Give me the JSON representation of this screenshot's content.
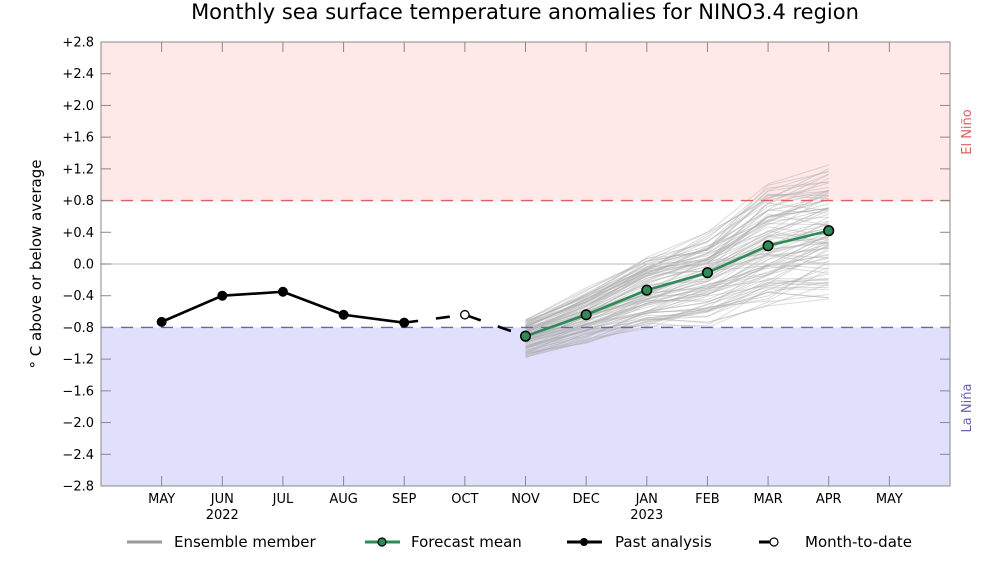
{
  "chart_data": {
    "type": "line",
    "title": "Monthly sea surface temperature anomalies for NINO3.4 region",
    "xlabel": "",
    "ylabel": "° C above or below average",
    "ylim": [
      -2.8,
      2.8
    ],
    "yticks": [
      2.8,
      2.4,
      2.0,
      1.6,
      1.2,
      0.8,
      0.4,
      0.0,
      -0.4,
      -0.8,
      -1.2,
      -1.6,
      -2.0,
      -2.4,
      -2.8
    ],
    "ytick_labels": [
      "+2.8",
      "+2.4",
      "+2.0",
      "+1.6",
      "+1.2",
      "+0.8",
      "+0.4",
      "0.0",
      "−0.4",
      "−0.8",
      "−1.2",
      "−1.6",
      "−2.0",
      "−2.4",
      "−2.8"
    ],
    "categories": [
      "MAY",
      "JUN",
      "JUL",
      "AUG",
      "SEP",
      "OCT",
      "NOV",
      "DEC",
      "JAN",
      "FEB",
      "MAR",
      "APR",
      "MAY"
    ],
    "year_labels": [
      {
        "index": 1,
        "label": "2022"
      },
      {
        "index": 8,
        "label": "2023"
      }
    ],
    "xlim": [
      -1,
      13
    ],
    "grid": false,
    "thresholds": [
      {
        "name": "El Niño",
        "value": 0.8,
        "color": "#e06060",
        "fill": "#ffe8e8",
        "range": [
          0.8,
          2.8
        ]
      },
      {
        "name": "La Niña",
        "value": -0.8,
        "color": "#6a64b0",
        "fill": "#e0e0fc",
        "range": [
          -2.8,
          -0.8
        ]
      }
    ],
    "zero_line": true,
    "series": [
      {
        "name": "Past analysis",
        "style": "solid",
        "color": "#000000",
        "marker": "filled",
        "x": [
          0,
          1,
          2,
          3,
          4
        ],
        "values": [
          -0.73,
          -0.4,
          -0.35,
          -0.64,
          -0.74
        ]
      },
      {
        "name": "Month-to-date",
        "style": "dashed",
        "color": "#000000",
        "marker": "open",
        "x": [
          4,
          5,
          6
        ],
        "values": [
          -0.74,
          -0.64,
          -0.91
        ],
        "marker_indices": [
          1
        ]
      },
      {
        "name": "Forecast mean",
        "style": "solid",
        "color": "#2e8b57",
        "marker": "filled-green",
        "x": [
          6,
          7,
          8,
          9,
          10,
          11
        ],
        "values": [
          -0.91,
          -0.64,
          -0.33,
          -0.11,
          0.23,
          0.42
        ]
      }
    ],
    "ensemble": {
      "name": "Ensemble member",
      "color": "#b0b0b0",
      "count": 99,
      "x": [
        6,
        7,
        8,
        9,
        10,
        11
      ],
      "approx_spread": {
        "min": [
          -1.2,
          -1.0,
          -0.85,
          -0.8,
          -0.55,
          -0.45
        ],
        "max": [
          -0.68,
          -0.3,
          0.15,
          0.4,
          1.05,
          1.25
        ]
      }
    },
    "legend": {
      "placement": "bottom",
      "entries": [
        {
          "label": "Ensemble member",
          "key": "ensemble"
        },
        {
          "label": "Forecast mean",
          "key": "forecast"
        },
        {
          "label": "Past analysis",
          "key": "past"
        },
        {
          "label": "Month-to-date",
          "key": "mtd"
        }
      ]
    },
    "side_labels": {
      "top": "El Niño",
      "bottom": "La Niña"
    }
  }
}
